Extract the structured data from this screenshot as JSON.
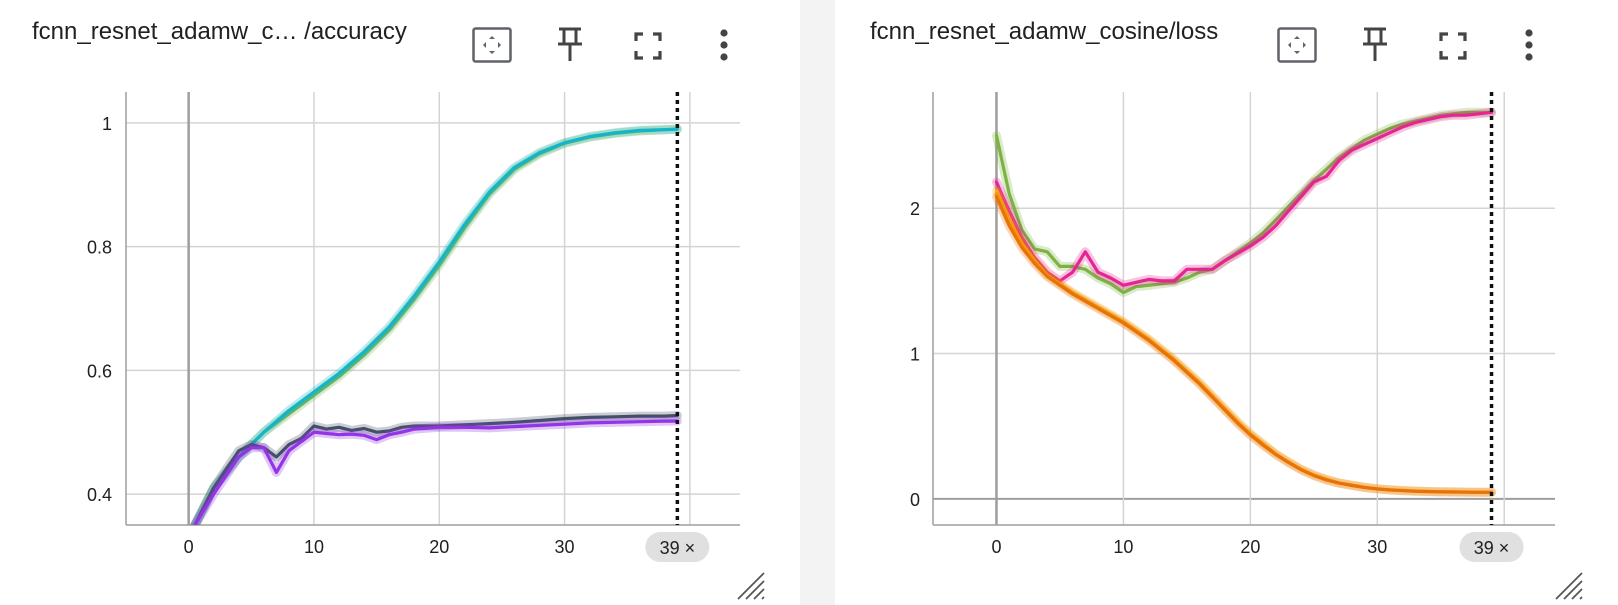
{
  "cards": [
    {
      "title": "fcnn_resnet_adamw_c… /accuracy",
      "tools": [
        "fit-domain-icon",
        "pin-icon",
        "fullscreen-icon",
        "more-vert-icon"
      ],
      "step_badge": "39 ×"
    },
    {
      "title": "fcnn_resnet_adamw_cosine/loss",
      "tools": [
        "fit-domain-icon",
        "pin-icon",
        "fullscreen-icon",
        "more-vert-icon"
      ],
      "step_badge": "39 ×"
    }
  ],
  "chart_data": [
    {
      "type": "line",
      "title": "fcnn_resnet_adamw_c… /accuracy",
      "xlabel": "",
      "ylabel": "",
      "xlim": [
        -5,
        44
      ],
      "ylim": [
        0.35,
        1.05
      ],
      "x_ticks": [
        0,
        10,
        20,
        30
      ],
      "y_ticks": [
        0.4,
        0.6,
        0.8,
        1
      ],
      "y_tick_labels": [
        "0.4",
        "0.6",
        "0.8",
        "1"
      ],
      "selected_step": 39,
      "grid": true,
      "series": [
        {
          "color": "#7cb342",
          "x": [
            0.5,
            2,
            4,
            6,
            8,
            10,
            12,
            14,
            16,
            18,
            20,
            22,
            24,
            26,
            28,
            30,
            32,
            34,
            36,
            38,
            39
          ],
          "values": [
            0.35,
            0.41,
            0.46,
            0.5,
            0.53,
            0.56,
            0.59,
            0.625,
            0.665,
            0.715,
            0.77,
            0.83,
            0.885,
            0.925,
            0.95,
            0.967,
            0.977,
            0.983,
            0.987,
            0.989,
            0.99
          ]
        },
        {
          "color": "#12b5cb",
          "x": [
            0.5,
            2,
            4,
            6,
            8,
            10,
            12,
            14,
            16,
            18,
            20,
            22,
            24,
            26,
            28,
            30,
            32,
            34,
            36,
            38,
            39
          ],
          "values": [
            0.35,
            0.41,
            0.46,
            0.5,
            0.535,
            0.565,
            0.595,
            0.63,
            0.67,
            0.72,
            0.775,
            0.835,
            0.888,
            0.928,
            0.952,
            0.968,
            0.978,
            0.984,
            0.988,
            0.989,
            0.99
          ]
        },
        {
          "color": "#425066",
          "x": [
            0.5,
            2,
            3,
            4,
            5,
            6,
            7,
            8,
            9,
            10,
            11,
            12,
            13,
            14,
            15,
            16,
            17,
            18,
            20,
            22,
            24,
            26,
            28,
            30,
            32,
            34,
            36,
            38,
            39
          ],
          "values": [
            0.35,
            0.41,
            0.44,
            0.47,
            0.48,
            0.475,
            0.46,
            0.48,
            0.49,
            0.51,
            0.505,
            0.508,
            0.503,
            0.506,
            0.5,
            0.502,
            0.508,
            0.51,
            0.51,
            0.512,
            0.514,
            0.516,
            0.519,
            0.522,
            0.524,
            0.525,
            0.526,
            0.526,
            0.527
          ]
        },
        {
          "color": "#9334e6",
          "x": [
            0.5,
            2,
            3,
            4,
            5,
            6,
            7,
            8,
            9,
            10,
            11,
            12,
            13,
            14,
            15,
            16,
            17,
            18,
            20,
            22,
            24,
            26,
            28,
            30,
            32,
            34,
            36,
            38,
            39
          ],
          "values": [
            0.35,
            0.4,
            0.43,
            0.46,
            0.475,
            0.475,
            0.435,
            0.47,
            0.485,
            0.5,
            0.498,
            0.496,
            0.497,
            0.495,
            0.488,
            0.496,
            0.5,
            0.505,
            0.508,
            0.508,
            0.507,
            0.509,
            0.511,
            0.513,
            0.515,
            0.516,
            0.517,
            0.518,
            0.518
          ]
        }
      ]
    },
    {
      "type": "line",
      "title": "fcnn_resnet_adamw_cosine/loss",
      "xlabel": "",
      "ylabel": "",
      "xlim": [
        -5,
        44
      ],
      "ylim": [
        -0.18,
        2.8
      ],
      "x_ticks": [
        0,
        10,
        20,
        30
      ],
      "y_ticks": [
        0,
        1,
        2
      ],
      "y_tick_labels": [
        "0",
        "1",
        "2"
      ],
      "selected_step": 39,
      "grid": true,
      "series": [
        {
          "color": "#7cb342",
          "x": [
            0,
            1,
            2,
            3,
            4,
            5,
            6,
            7,
            8,
            9,
            10,
            11,
            12,
            13,
            14,
            15,
            16,
            17,
            18,
            19,
            20,
            21,
            22,
            23,
            24,
            25,
            26,
            27,
            28,
            29,
            30,
            31,
            32,
            33,
            34,
            35,
            36,
            37,
            38,
            39
          ],
          "values": [
            2.5,
            2.1,
            1.85,
            1.72,
            1.7,
            1.6,
            1.6,
            1.58,
            1.52,
            1.48,
            1.42,
            1.46,
            1.47,
            1.48,
            1.49,
            1.52,
            1.56,
            1.58,
            1.64,
            1.7,
            1.76,
            1.83,
            1.92,
            2.01,
            2.1,
            2.19,
            2.27,
            2.35,
            2.41,
            2.47,
            2.51,
            2.55,
            2.58,
            2.6,
            2.62,
            2.64,
            2.65,
            2.66,
            2.66,
            2.66
          ]
        },
        {
          "color": "#e52592",
          "x": [
            0,
            1,
            2,
            3,
            4,
            5,
            6,
            7,
            8,
            9,
            10,
            11,
            12,
            13,
            14,
            15,
            16,
            17,
            18,
            19,
            20,
            21,
            22,
            23,
            24,
            25,
            26,
            27,
            28,
            29,
            30,
            31,
            32,
            33,
            34,
            35,
            36,
            37,
            38,
            39
          ],
          "values": [
            2.18,
            1.98,
            1.8,
            1.66,
            1.56,
            1.5,
            1.56,
            1.7,
            1.56,
            1.52,
            1.47,
            1.49,
            1.51,
            1.5,
            1.5,
            1.58,
            1.58,
            1.58,
            1.64,
            1.69,
            1.74,
            1.8,
            1.88,
            1.98,
            2.08,
            2.18,
            2.22,
            2.33,
            2.4,
            2.44,
            2.48,
            2.52,
            2.56,
            2.59,
            2.61,
            2.63,
            2.64,
            2.64,
            2.65,
            2.66
          ]
        },
        {
          "color": "#f9ab00",
          "x": [
            0,
            1,
            2,
            3,
            4,
            5,
            6,
            7,
            8,
            9,
            10,
            11,
            12,
            13,
            14,
            15,
            16,
            17,
            18,
            19,
            20,
            21,
            22,
            23,
            24,
            25,
            26,
            27,
            28,
            29,
            30,
            31,
            32,
            33,
            34,
            35,
            36,
            37,
            38,
            39
          ],
          "values": [
            2.12,
            1.92,
            1.76,
            1.64,
            1.54,
            1.48,
            1.42,
            1.37,
            1.32,
            1.27,
            1.22,
            1.16,
            1.1,
            1.03,
            0.96,
            0.88,
            0.8,
            0.71,
            0.62,
            0.53,
            0.45,
            0.38,
            0.31,
            0.255,
            0.205,
            0.165,
            0.135,
            0.11,
            0.095,
            0.08,
            0.07,
            0.063,
            0.058,
            0.054,
            0.051,
            0.049,
            0.048,
            0.047,
            0.046,
            0.046
          ]
        },
        {
          "color": "#e8710a",
          "x": [
            0,
            1,
            2,
            3,
            4,
            5,
            6,
            7,
            8,
            9,
            10,
            11,
            12,
            13,
            14,
            15,
            16,
            17,
            18,
            19,
            20,
            21,
            22,
            23,
            24,
            25,
            26,
            27,
            28,
            29,
            30,
            31,
            32,
            33,
            34,
            35,
            36,
            37,
            38,
            39
          ],
          "values": [
            2.08,
            1.88,
            1.73,
            1.62,
            1.53,
            1.47,
            1.41,
            1.36,
            1.31,
            1.26,
            1.21,
            1.15,
            1.09,
            1.02,
            0.95,
            0.87,
            0.79,
            0.7,
            0.61,
            0.52,
            0.44,
            0.37,
            0.305,
            0.25,
            0.2,
            0.16,
            0.13,
            0.108,
            0.092,
            0.078,
            0.068,
            0.061,
            0.056,
            0.052,
            0.05,
            0.048,
            0.047,
            0.046,
            0.045,
            0.045
          ]
        }
      ]
    }
  ]
}
